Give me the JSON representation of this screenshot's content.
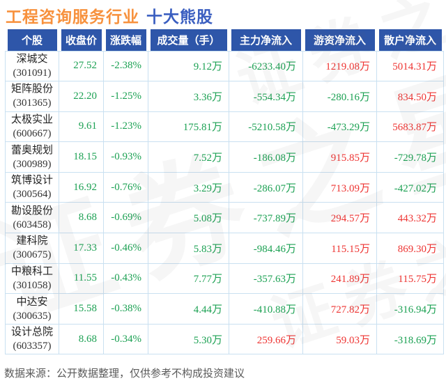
{
  "title": {
    "industry": "工程咨询服务行业",
    "suffix": "十大熊股"
  },
  "footer": "数据来源：公开数据整理，仅供参考不构成投资建议",
  "watermark": "证券之星",
  "colors": {
    "green": "#1ca153",
    "red": "#ee3432",
    "header_bg": "#2e56a9",
    "header_text": "#ffffff",
    "title_industry": "#f7913d",
    "title_suffix": "#3a5ec0",
    "cell_border": "#c9e0f1",
    "name_cell_bg": "#f1f1f1",
    "footer_text": "#5a5a5a"
  },
  "table": {
    "headers": [
      "个股",
      "收盘价",
      "涨跌幅",
      "成交量（手）",
      "主力净流入",
      "游资净流入",
      "散户净流入"
    ],
    "rows": [
      {
        "name": "深城交",
        "code": "(301091)",
        "values": [
          {
            "text": "27.52",
            "color": "green"
          },
          {
            "text": "-2.38%",
            "color": "green"
          },
          {
            "text": "9.12万",
            "color": "green"
          },
          {
            "text": "-6233.40万",
            "color": "green"
          },
          {
            "text": "1219.08万",
            "color": "red"
          },
          {
            "text": "5014.31万",
            "color": "red"
          }
        ]
      },
      {
        "name": "矩阵股份",
        "code": "(301365)",
        "values": [
          {
            "text": "22.20",
            "color": "green"
          },
          {
            "text": "-1.25%",
            "color": "green"
          },
          {
            "text": "3.36万",
            "color": "green"
          },
          {
            "text": "-554.34万",
            "color": "green"
          },
          {
            "text": "-280.16万",
            "color": "green"
          },
          {
            "text": "834.50万",
            "color": "red"
          }
        ]
      },
      {
        "name": "太极实业",
        "code": "(600667)",
        "values": [
          {
            "text": "9.61",
            "color": "green"
          },
          {
            "text": "-1.23%",
            "color": "green"
          },
          {
            "text": "175.81万",
            "color": "green"
          },
          {
            "text": "-5210.58万",
            "color": "green"
          },
          {
            "text": "-473.29万",
            "color": "green"
          },
          {
            "text": "5683.87万",
            "color": "red"
          }
        ]
      },
      {
        "name": "蕾奥规划",
        "code": "(300989)",
        "values": [
          {
            "text": "18.15",
            "color": "green"
          },
          {
            "text": "-0.93%",
            "color": "green"
          },
          {
            "text": "7.52万",
            "color": "green"
          },
          {
            "text": "-186.08万",
            "color": "green"
          },
          {
            "text": "915.85万",
            "color": "red"
          },
          {
            "text": "-729.78万",
            "color": "green"
          }
        ]
      },
      {
        "name": "筑博设计",
        "code": "(300564)",
        "values": [
          {
            "text": "16.92",
            "color": "green"
          },
          {
            "text": "-0.76%",
            "color": "green"
          },
          {
            "text": "3.29万",
            "color": "green"
          },
          {
            "text": "-286.07万",
            "color": "green"
          },
          {
            "text": "713.09万",
            "color": "red"
          },
          {
            "text": "-427.02万",
            "color": "green"
          }
        ]
      },
      {
        "name": "勘设股份",
        "code": "(603458)",
        "values": [
          {
            "text": "8.68",
            "color": "green"
          },
          {
            "text": "-0.69%",
            "color": "green"
          },
          {
            "text": "5.08万",
            "color": "green"
          },
          {
            "text": "-737.89万",
            "color": "green"
          },
          {
            "text": "294.57万",
            "color": "red"
          },
          {
            "text": "443.32万",
            "color": "red"
          }
        ]
      },
      {
        "name": "建科院",
        "code": "(300675)",
        "values": [
          {
            "text": "17.33",
            "color": "green"
          },
          {
            "text": "-0.46%",
            "color": "green"
          },
          {
            "text": "5.83万",
            "color": "green"
          },
          {
            "text": "-984.46万",
            "color": "green"
          },
          {
            "text": "115.15万",
            "color": "red"
          },
          {
            "text": "869.30万",
            "color": "red"
          }
        ]
      },
      {
        "name": "中粮科工",
        "code": "(301058)",
        "values": [
          {
            "text": "11.55",
            "color": "green"
          },
          {
            "text": "-0.43%",
            "color": "green"
          },
          {
            "text": "7.77万",
            "color": "green"
          },
          {
            "text": "-357.63万",
            "color": "green"
          },
          {
            "text": "241.89万",
            "color": "red"
          },
          {
            "text": "115.75万",
            "color": "red"
          }
        ]
      },
      {
        "name": "中达安",
        "code": "(300635)",
        "values": [
          {
            "text": "15.58",
            "color": "green"
          },
          {
            "text": "-0.38%",
            "color": "green"
          },
          {
            "text": "4.44万",
            "color": "green"
          },
          {
            "text": "-410.88万",
            "color": "green"
          },
          {
            "text": "727.82万",
            "color": "red"
          },
          {
            "text": "-316.94万",
            "color": "green"
          }
        ]
      },
      {
        "name": "设计总院",
        "code": "(603357)",
        "values": [
          {
            "text": "8.68",
            "color": "green"
          },
          {
            "text": "-0.34%",
            "color": "green"
          },
          {
            "text": "5.30万",
            "color": "green"
          },
          {
            "text": "259.66万",
            "color": "red"
          },
          {
            "text": "59.03万",
            "color": "red"
          },
          {
            "text": "-318.69万",
            "color": "green"
          }
        ]
      }
    ]
  },
  "chart_data": {
    "type": "table",
    "title": "工程咨询服务行业 十大熊股",
    "columns": [
      "个股",
      "收盘价",
      "涨跌幅",
      "成交量（手）",
      "主力净流入",
      "游资净流入",
      "散户净流入"
    ],
    "rows": [
      [
        "深城交(301091)",
        27.52,
        "-2.38%",
        "9.12万",
        "-6233.40万",
        "1219.08万",
        "5014.31万"
      ],
      [
        "矩阵股份(301365)",
        22.2,
        "-1.25%",
        "3.36万",
        "-554.34万",
        "-280.16万",
        "834.50万"
      ],
      [
        "太极实业(600667)",
        9.61,
        "-1.23%",
        "175.81万",
        "-5210.58万",
        "-473.29万",
        "5683.87万"
      ],
      [
        "蕾奥规划(300989)",
        18.15,
        "-0.93%",
        "7.52万",
        "-186.08万",
        "915.85万",
        "-729.78万"
      ],
      [
        "筑博设计(300564)",
        16.92,
        "-0.76%",
        "3.29万",
        "-286.07万",
        "713.09万",
        "-427.02万"
      ],
      [
        "勘设股份(603458)",
        8.68,
        "-0.69%",
        "5.08万",
        "-737.89万",
        "294.57万",
        "443.32万"
      ],
      [
        "建科院(300675)",
        17.33,
        "-0.46%",
        "5.83万",
        "-984.46万",
        "115.15万",
        "869.30万"
      ],
      [
        "中粮科工(301058)",
        11.55,
        "-0.43%",
        "7.77万",
        "-357.63万",
        "241.89万",
        "115.75万"
      ],
      [
        "中达安(300635)",
        15.58,
        "-0.38%",
        "4.44万",
        "-410.88万",
        "727.82万",
        "-316.94万"
      ],
      [
        "设计总院(603357)",
        8.68,
        "-0.34%",
        "5.30万",
        "259.66万",
        "59.03万",
        "-318.69万"
      ]
    ],
    "notes": "negative values shown in green, positive in red; all ten stocks closed lower"
  }
}
